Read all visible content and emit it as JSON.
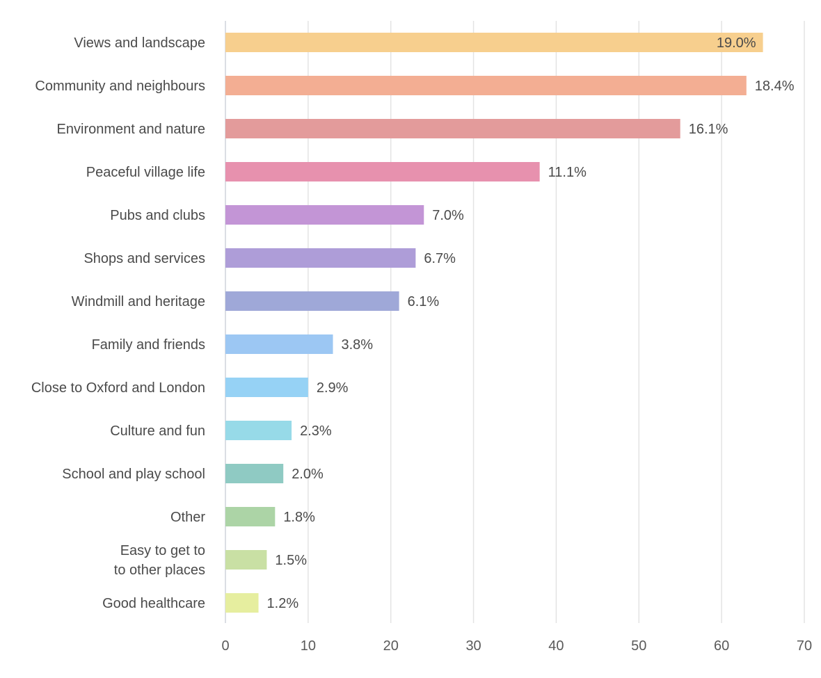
{
  "chart_data": {
    "type": "bar",
    "orientation": "horizontal",
    "title": "",
    "xlabel": "",
    "ylabel": "",
    "xlim": [
      0,
      70
    ],
    "x_ticks": [
      0,
      10,
      20,
      30,
      40,
      50,
      60,
      70
    ],
    "grid": true,
    "categories": [
      [
        "Views and landscape"
      ],
      [
        "Community and neighbours"
      ],
      [
        "Environment and nature"
      ],
      [
        "Peaceful village life"
      ],
      [
        "Pubs and clubs"
      ],
      [
        "Shops and services"
      ],
      [
        "Windmill and heritage"
      ],
      [
        "Family and friends"
      ],
      [
        "Close to Oxford and London"
      ],
      [
        "Culture and fun"
      ],
      [
        "School and play school"
      ],
      [
        "Other"
      ],
      [
        "Easy to get to",
        "to other places"
      ],
      [
        "Good healthcare"
      ]
    ],
    "values": [
      65,
      63,
      55,
      38,
      24,
      23,
      21,
      13,
      10,
      8,
      7,
      6,
      5,
      4
    ],
    "data_labels": [
      "19.0%",
      "18.4%",
      "16.1%",
      "11.1%",
      "7.0%",
      "6.7%",
      "6.1%",
      "3.8%",
      "2.9%",
      "2.3%",
      "2.0%",
      "1.8%",
      "1.5%",
      "1.2%"
    ],
    "colors": [
      "#f7cf8e",
      "#f3ae93",
      "#e39b9b",
      "#e791ae",
      "#c395d6",
      "#ae9dd8",
      "#9fa8d8",
      "#9cc7f3",
      "#96d2f5",
      "#97dae8",
      "#8fcac3",
      "#acd4a6",
      "#c9e0a4",
      "#e6ee9f"
    ],
    "label_inside_first": true
  }
}
